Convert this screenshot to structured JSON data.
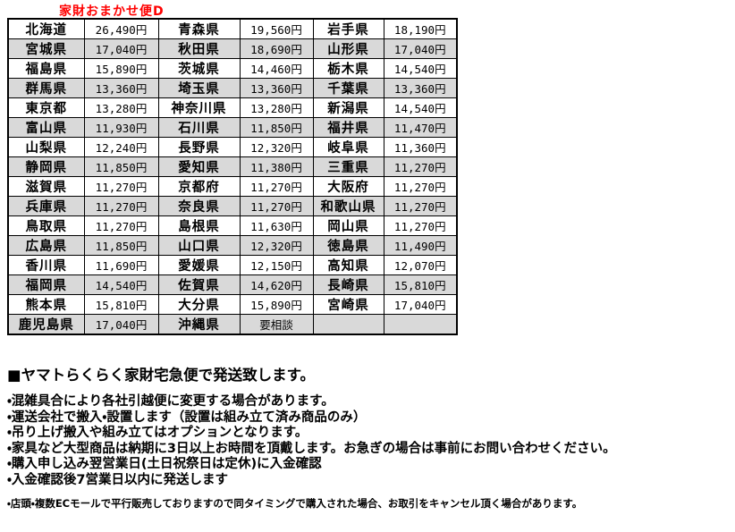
{
  "title": "家財おまかせ便D",
  "colors": {
    "title_red": "#ff0000",
    "row_alt_gray": "#d9d9d9",
    "border_black": "#000000"
  },
  "table": {
    "rows": [
      {
        "cells": [
          "北海道",
          "26,490円",
          "青森県",
          "19,560円",
          "岩手県",
          "18,190円"
        ]
      },
      {
        "cells": [
          "宮城県",
          "17,040円",
          "秋田県",
          "18,690円",
          "山形県",
          "17,040円"
        ]
      },
      {
        "cells": [
          "福島県",
          "15,890円",
          "茨城県",
          "14,460円",
          "栃木県",
          "14,540円"
        ]
      },
      {
        "cells": [
          "群馬県",
          "13,360円",
          "埼玉県",
          "13,360円",
          "千葉県",
          "13,360円"
        ]
      },
      {
        "cells": [
          "東京都",
          "13,280円",
          "神奈川県",
          "13,280円",
          "新潟県",
          "14,540円"
        ]
      },
      {
        "cells": [
          "富山県",
          "11,930円",
          "石川県",
          "11,850円",
          "福井県",
          "11,470円"
        ]
      },
      {
        "cells": [
          "山梨県",
          "12,240円",
          "長野県",
          "12,320円",
          "岐阜県",
          "11,360円"
        ]
      },
      {
        "cells": [
          "静岡県",
          "11,850円",
          "愛知県",
          "11,380円",
          "三重県",
          "11,270円"
        ]
      },
      {
        "cells": [
          "滋賀県",
          "11,270円",
          "京都府",
          "11,270円",
          "大阪府",
          "11,270円"
        ]
      },
      {
        "cells": [
          "兵庫県",
          "11,270円",
          "奈良県",
          "11,270円",
          "和歌山県",
          "11,270円"
        ]
      },
      {
        "cells": [
          "鳥取県",
          "11,270円",
          "島根県",
          "11,630円",
          "岡山県",
          "11,270円"
        ]
      },
      {
        "cells": [
          "広島県",
          "11,850円",
          "山口県",
          "12,320円",
          "徳島県",
          "11,490円"
        ]
      },
      {
        "cells": [
          "香川県",
          "11,690円",
          "愛媛県",
          "12,150円",
          "高知県",
          "12,070円"
        ]
      },
      {
        "cells": [
          "福岡県",
          "14,540円",
          "佐賀県",
          "14,620円",
          "長崎県",
          "15,810円"
        ]
      },
      {
        "cells": [
          "熊本県",
          "15,810円",
          "大分県",
          "15,890円",
          "宮崎県",
          "17,040円"
        ]
      },
      {
        "cells": [
          "鹿児島県",
          "17,040円",
          "沖縄県",
          "要相談",
          "",
          ""
        ]
      }
    ]
  },
  "notes": {
    "heading": "■ヤマトらくらく家財宅急便で発送致します。",
    "bullets": [
      "・混雑具合により各社引越便に変更する場合があります。",
      "・運送会社で搬入・設置します（設置は組み立て済み商品のみ）",
      "・吊り上げ搬入や組み立てはオプションとなります。",
      "・家具など大型商品は納期に3日以上お時間を頂戴します。お急ぎの場合は事前にお問い合わせください。",
      "・購入申し込み翌営業日(土日祝祭日は定休)に入金確認",
      "・入金確認後7営業日以内に発送します"
    ],
    "footnote": "・店頭・複数ECモールで平行販売しておりますので同タイミングで購入された場合、お取引をキャンセル頂く場合があります。"
  }
}
